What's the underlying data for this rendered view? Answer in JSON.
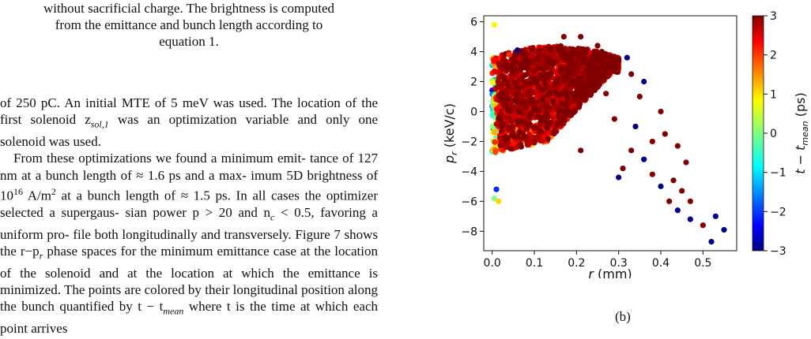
{
  "caption_tail": {
    "line1": "without sacrificial charge. The brightness is computed",
    "line2": "from the emittance and bunch length according to",
    "line3": "equation 1."
  },
  "body": {
    "p1_lines": [
      "of 250 pC. An initial MTE of 5 meV was used. The",
      "location of the first solenoid z",
      "variable and only one solenoid was used."
    ],
    "p1_sub": "sol,1",
    "p1_after": " was an optimization",
    "p2_lines": [
      "From these optimizations we found a minimum emit-",
      "tance of 127 nm at a bunch length of ≈ 1.6 ps and a max-",
      "imum 5D brightness of 10",
      "≈ 1.5 ps. In all cases the optimizer selected a supergaus-",
      "sian power p > 20 and n",
      "file both longitudinally and transversely. Figure 7 shows",
      "the r−p",
      "the location of the solenoid and at the location at which",
      "the emittance is minimized. The points are colored by",
      "their longitudinal position along the bunch quantified by",
      "t − t",
      "where t is the time at which each point arrives"
    ],
    "sup16": "16",
    "brightness_unit": " A/m",
    "sup2": "2",
    "bunch_tail": " at a bunch length of",
    "nc_sub": "c",
    "nc_tail": " < 0.5, favoring a uniform pro-",
    "pr_sub": "r",
    "pr_tail": " phase spaces for the minimum emittance case at",
    "tmean_sub": "mean"
  },
  "figure": {
    "panel_label": "(b)",
    "colorbar_label": "t − t",
    "colorbar_label_sub": "mean",
    "colorbar_label_unit": " (ps)"
  },
  "chart_data": {
    "type": "scatter",
    "title": "",
    "xlabel": "r (mm)",
    "ylabel": "p_r (keV/c)",
    "xlim": [
      -0.02,
      0.58
    ],
    "ylim": [
      -9.3,
      6.4
    ],
    "xticks": [
      "0.0",
      "0.1",
      "0.2",
      "0.3",
      "0.4",
      "0.5"
    ],
    "xtick_values": [
      0.0,
      0.1,
      0.2,
      0.3,
      0.4,
      0.5
    ],
    "yticks": [
      "6",
      "4",
      "2",
      "0",
      "−2",
      "−4",
      "−6",
      "−8"
    ],
    "ytick_values": [
      6,
      4,
      2,
      0,
      -2,
      -4,
      -6,
      -8
    ],
    "colorbar": {
      "range": [
        -3,
        3
      ],
      "ticks": [
        "3",
        "2",
        "1",
        "0",
        "−1",
        "−2",
        "−3"
      ],
      "tick_values": [
        3,
        2,
        1,
        0,
        -1,
        -2,
        -3
      ],
      "colormap": "jet"
    },
    "grid": false,
    "points": [
      {
        "x": 0.005,
        "y": 5.8,
        "c": 0.8
      },
      {
        "x": 0.52,
        "y": -8.7,
        "c": -3
      },
      {
        "x": 0.55,
        "y": -7.9,
        "c": -3
      },
      {
        "x": 0.53,
        "y": -7.0,
        "c": -3
      },
      {
        "x": 0.5,
        "y": -7.6,
        "c": 3
      },
      {
        "x": 0.47,
        "y": -7.2,
        "c": -3
      },
      {
        "x": 0.47,
        "y": -6.0,
        "c": 3
      },
      {
        "x": 0.44,
        "y": -6.6,
        "c": -3
      },
      {
        "x": 0.42,
        "y": -6.0,
        "c": 3
      },
      {
        "x": 0.45,
        "y": -5.3,
        "c": 3
      },
      {
        "x": 0.4,
        "y": -5.0,
        "c": -3
      },
      {
        "x": 0.38,
        "y": -4.2,
        "c": 3
      },
      {
        "x": 0.43,
        "y": -4.6,
        "c": 3
      },
      {
        "x": 0.36,
        "y": -3.2,
        "c": -3
      },
      {
        "x": 0.33,
        "y": -2.6,
        "c": 3
      },
      {
        "x": 0.31,
        "y": -3.8,
        "c": 3
      },
      {
        "x": 0.21,
        "y": -2.6,
        "c": 3
      },
      {
        "x": 0.3,
        "y": -4.4,
        "c": -3
      },
      {
        "x": 0.26,
        "y": 4.0,
        "c": 3
      },
      {
        "x": 0.17,
        "y": 5.0,
        "c": 3
      },
      {
        "x": 0.21,
        "y": 5.0,
        "c": 3
      },
      {
        "x": 0.25,
        "y": 4.4,
        "c": 3
      },
      {
        "x": 0.3,
        "y": 3.4,
        "c": 3
      },
      {
        "x": 0.33,
        "y": 2.5,
        "c": 3
      },
      {
        "x": 0.35,
        "y": 1.0,
        "c": 3
      },
      {
        "x": 0.4,
        "y": 0.0,
        "c": 3
      },
      {
        "x": 0.41,
        "y": -1.5,
        "c": 3
      },
      {
        "x": 0.44,
        "y": -2.3,
        "c": 3
      },
      {
        "x": 0.46,
        "y": -3.4,
        "c": 3
      },
      {
        "x": 0.38,
        "y": -2.0,
        "c": 3
      },
      {
        "x": 0.34,
        "y": -1.0,
        "c": -3
      },
      {
        "x": 0.29,
        "y": -0.5,
        "c": 3
      },
      {
        "x": 0.27,
        "y": 1.2,
        "c": 3
      },
      {
        "x": 0.36,
        "y": 2.0,
        "c": -3
      },
      {
        "x": 0.32,
        "y": 3.6,
        "c": -3
      },
      {
        "x": 0.06,
        "y": 4.1,
        "c": -3
      },
      {
        "x": 0.04,
        "y": 3.8,
        "c": 2
      },
      {
        "x": 0.005,
        "y": -5.8,
        "c": 0
      },
      {
        "x": 0.01,
        "y": -5.2,
        "c": -2
      },
      {
        "x": 0.015,
        "y": -6.0,
        "c": 1
      }
    ]
  }
}
